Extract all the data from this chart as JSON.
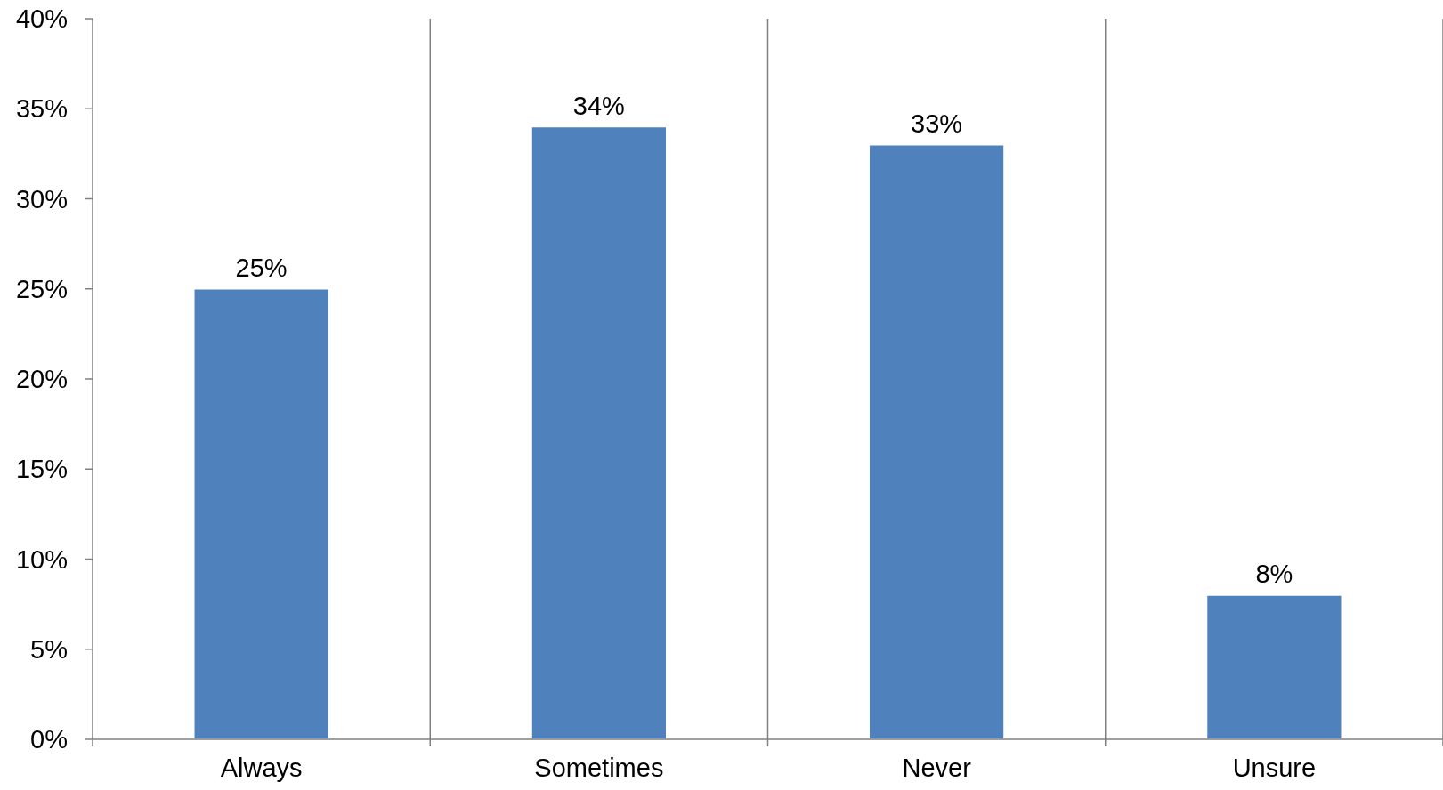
{
  "chart_data": {
    "type": "bar",
    "categories": [
      "Always",
      "Sometimes",
      "Never",
      "Unsure"
    ],
    "values": [
      25,
      34,
      33,
      8
    ],
    "color": "#4f81bd",
    "ylim": [
      0,
      40
    ],
    "yticks": [
      {
        "value": 0,
        "label": "0%"
      },
      {
        "value": 5,
        "label": "5%"
      },
      {
        "value": 10,
        "label": "10%"
      },
      {
        "value": 15,
        "label": "15%"
      },
      {
        "value": 20,
        "label": "20%"
      },
      {
        "value": 25,
        "label": "25%"
      },
      {
        "value": 30,
        "label": "30%"
      },
      {
        "value": 35,
        "label": "35%"
      },
      {
        "value": 40,
        "label": "40%"
      }
    ],
    "value_labels": [
      "25%",
      "34%",
      "33%",
      "8%"
    ],
    "grid": "x"
  }
}
